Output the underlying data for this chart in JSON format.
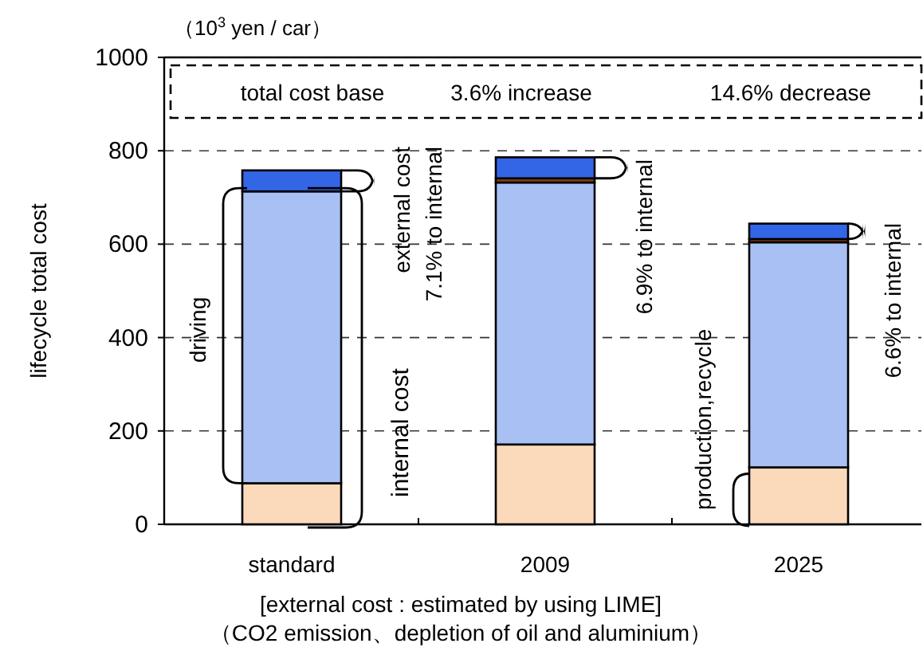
{
  "chart_data": {
    "type": "bar",
    "stacked": true,
    "categories": [
      "standard",
      "2009",
      "2025"
    ],
    "series": [
      {
        "color": "#fbd9bb",
        "values": [
          88,
          171,
          122
        ]
      },
      {
        "color": "#a9c0f4",
        "values": [
          625,
          561,
          482
        ]
      },
      {
        "color": "#8b3a1a",
        "values": [
          0,
          9,
          7
        ]
      },
      {
        "color": "#3366e6",
        "values": [
          45,
          45,
          33
        ]
      }
    ],
    "ylabel": "lifecycle total cost",
    "xlabel": "[external cost : estimated by using LIME]",
    "ylim": [
      0,
      1000
    ],
    "yticks": [
      0,
      200,
      400,
      600,
      800,
      1000
    ],
    "grid": "y",
    "annotations": [
      "（10$^{3}$ yen / car）",
      "total cost base",
      "3.6% increase",
      "14.6% decrease",
      "external cost",
      "7.1% to internal",
      "6.9% to internal",
      "6.6% to internal",
      "internal cost",
      "driving",
      "production,recycle",
      "（CO2 emission、depletion of oil and aluminium）"
    ]
  }
}
